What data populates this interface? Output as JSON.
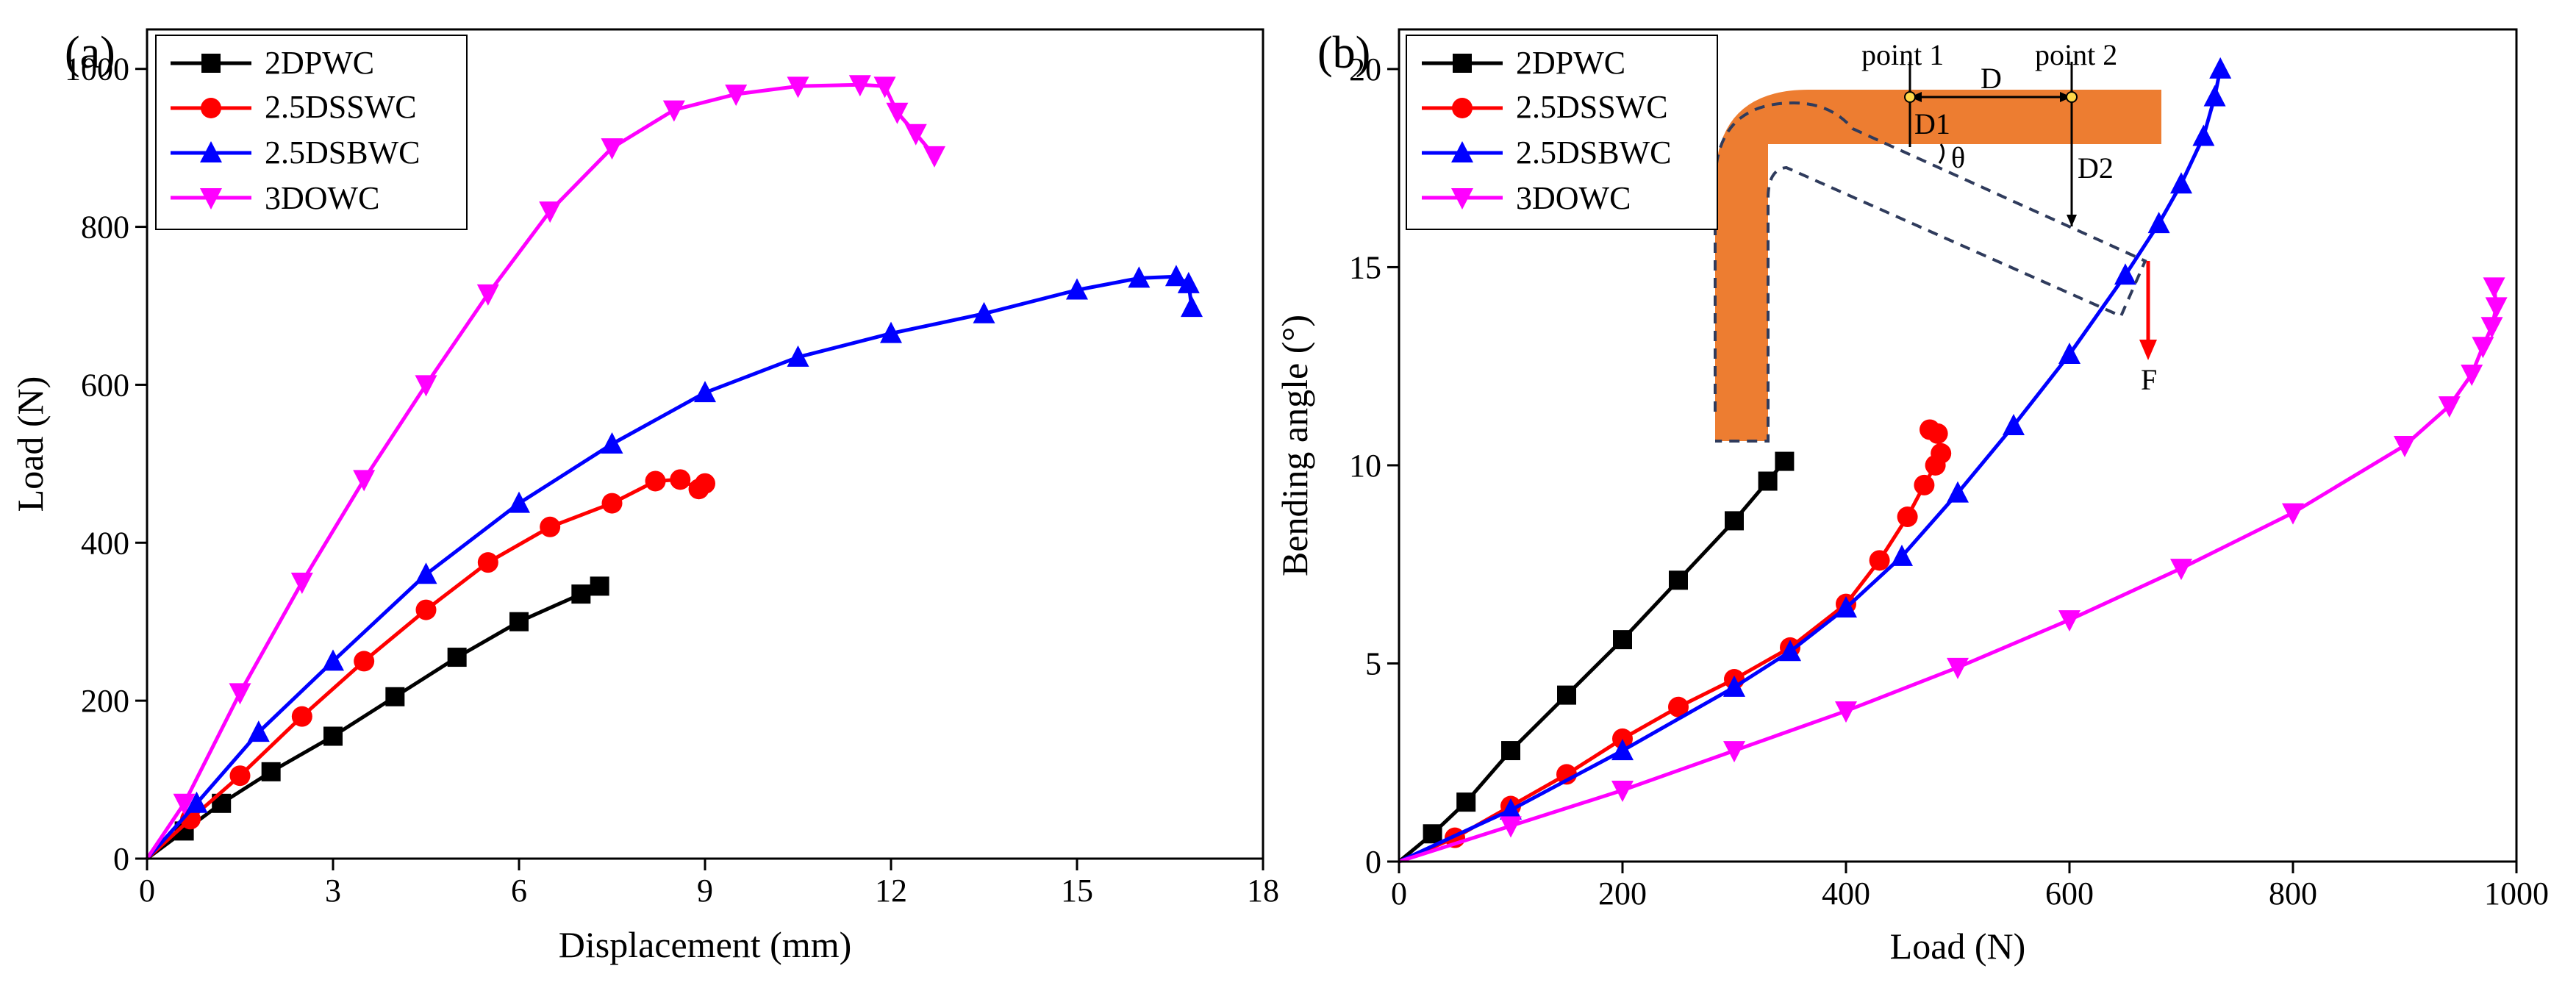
{
  "colors": {
    "2DPWC": "#000000",
    "2.5DSSWC": "#ff0000",
    "2.5DSBWC": "#0000ff",
    "3DOWC": "#ff00ff",
    "inset_fill": "#ed7d31",
    "inset_arrow": "#ff0000",
    "inset_dash": "#2f3b5c"
  },
  "chart_data": [
    {
      "panel": "(a)",
      "type": "line",
      "xlabel": "Displacement (mm)",
      "ylabel": "Load (N)",
      "xlim": [
        0,
        18
      ],
      "ylim": [
        0,
        1050
      ],
      "xticks": [
        0,
        3,
        6,
        9,
        12,
        15,
        18
      ],
      "yticks": [
        0,
        200,
        400,
        600,
        800,
        1000
      ],
      "grid": false,
      "legend_position": "top-left",
      "series": [
        {
          "name": "2DPWC",
          "marker": "square",
          "x": [
            0,
            0.6,
            1.2,
            2.0,
            3.0,
            4.0,
            5.0,
            6.0,
            7.0,
            7.3
          ],
          "y": [
            0,
            35,
            70,
            110,
            155,
            205,
            255,
            300,
            335,
            345
          ]
        },
        {
          "name": "2.5DSSWC",
          "marker": "circle",
          "x": [
            0,
            0.7,
            1.5,
            2.5,
            3.5,
            4.5,
            5.5,
            6.5,
            7.5,
            8.2,
            8.6,
            8.9,
            9.0
          ],
          "y": [
            0,
            50,
            105,
            180,
            250,
            315,
            375,
            420,
            450,
            478,
            480,
            468,
            475
          ]
        },
        {
          "name": "2.5DSBWC",
          "marker": "triangle-up",
          "x": [
            0,
            0.8,
            1.8,
            3.0,
            4.5,
            6.0,
            7.5,
            9.0,
            10.5,
            12.0,
            13.5,
            15.0,
            16.0,
            16.6,
            16.8,
            16.85
          ],
          "y": [
            0,
            70,
            160,
            250,
            360,
            450,
            525,
            590,
            635,
            665,
            690,
            720,
            735,
            737,
            728,
            698
          ]
        },
        {
          "name": "3DOWC",
          "marker": "triangle-down",
          "x": [
            0,
            0.6,
            1.5,
            2.5,
            3.5,
            4.5,
            5.5,
            6.5,
            7.5,
            8.5,
            9.5,
            10.5,
            11.5,
            11.9,
            12.1,
            12.4,
            12.7
          ],
          "y": [
            0,
            70,
            210,
            350,
            480,
            600,
            715,
            820,
            900,
            948,
            968,
            978,
            980,
            978,
            945,
            918,
            890
          ]
        }
      ]
    },
    {
      "panel": "(b)",
      "type": "line",
      "xlabel": "Load (N)",
      "ylabel": "Bending angle (°)",
      "xlim": [
        0,
        1000
      ],
      "ylim": [
        0,
        21
      ],
      "xticks": [
        0,
        200,
        400,
        600,
        800,
        1000
      ],
      "yticks": [
        0,
        5,
        10,
        15,
        20
      ],
      "grid": false,
      "legend_position": "top-left",
      "series": [
        {
          "name": "2DPWC",
          "marker": "square",
          "x": [
            0,
            30,
            60,
            100,
            150,
            200,
            250,
            300,
            330,
            345
          ],
          "y": [
            0,
            0.7,
            1.5,
            2.8,
            4.2,
            5.6,
            7.1,
            8.6,
            9.6,
            10.1
          ]
        },
        {
          "name": "2.5DSSWC",
          "marker": "circle",
          "x": [
            0,
            50,
            100,
            150,
            200,
            250,
            300,
            350,
            400,
            430,
            455,
            470,
            480,
            485,
            482,
            475
          ],
          "y": [
            0,
            0.6,
            1.4,
            2.2,
            3.1,
            3.9,
            4.6,
            5.4,
            6.5,
            7.6,
            8.7,
            9.5,
            10.0,
            10.3,
            10.8,
            10.9
          ]
        },
        {
          "name": "2.5DSBWC",
          "marker": "triangle-up",
          "x": [
            0,
            100,
            200,
            300,
            350,
            400,
            450,
            500,
            550,
            600,
            650,
            680,
            700,
            720,
            730,
            735
          ],
          "y": [
            0,
            1.3,
            2.8,
            4.4,
            5.3,
            6.4,
            7.7,
            9.3,
            11.0,
            12.8,
            14.8,
            16.1,
            17.1,
            18.3,
            19.3,
            20.0
          ]
        },
        {
          "name": "3DOWC",
          "marker": "triangle-down",
          "x": [
            0,
            100,
            200,
            300,
            400,
            500,
            600,
            700,
            800,
            900,
            940,
            960,
            970,
            978,
            982,
            980
          ],
          "y": [
            0,
            0.9,
            1.8,
            2.8,
            3.8,
            4.9,
            6.1,
            7.4,
            8.8,
            10.5,
            11.5,
            12.3,
            13.0,
            13.5,
            14.0,
            14.5
          ]
        }
      ],
      "inset": {
        "label_point1": "point 1",
        "label_point2": "point 2",
        "label_D": "D",
        "label_D1": "D1",
        "label_D2": "D2",
        "label_theta": "θ",
        "label_F": "F"
      }
    }
  ]
}
